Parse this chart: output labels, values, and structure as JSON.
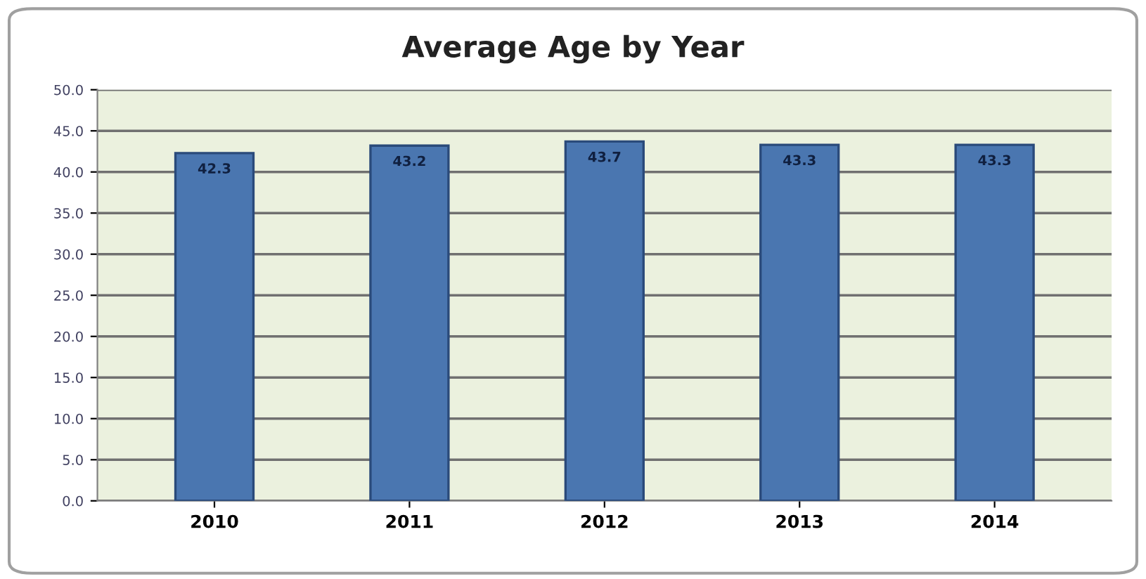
{
  "chart_data": {
    "type": "bar",
    "title": "Average Age by Year",
    "categories": [
      "2010",
      "2011",
      "2012",
      "2013",
      "2014"
    ],
    "values": [
      42.3,
      43.2,
      43.7,
      43.3,
      43.3
    ],
    "color": "#4a76b0",
    "data_labels": true,
    "ylim": [
      0,
      50
    ],
    "yticks": [
      {
        "value": 0,
        "label": "0.0"
      },
      {
        "value": 5,
        "label": "5.0"
      },
      {
        "value": 10,
        "label": "10.0"
      },
      {
        "value": 15,
        "label": "15.0"
      },
      {
        "value": 20,
        "label": "20.0"
      },
      {
        "value": 25,
        "label": "25.0"
      },
      {
        "value": 30,
        "label": "30.0"
      },
      {
        "value": 35,
        "label": "35.0"
      },
      {
        "value": 40,
        "label": "40.0"
      },
      {
        "value": 45,
        "label": "45.0"
      },
      {
        "value": 50,
        "label": "50.0"
      }
    ],
    "grid": "y"
  }
}
